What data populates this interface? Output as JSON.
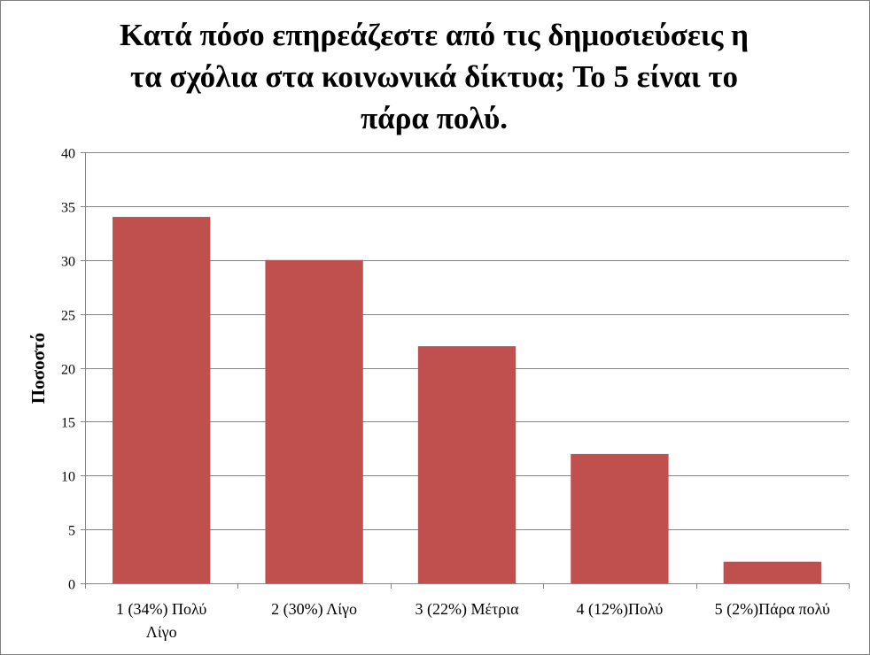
{
  "chart_data": {
    "type": "bar",
    "title": "Κατά πόσο επηρεάζεστε από τις δημοσιεύσεις η τα σχόλια στα κοινωνικά δίκτυα; Το 5 είναι το πάρα πολύ.",
    "title_lines": [
      "Κατά πόσο επηρεάζεστε από τις δημοσιεύσεις η",
      "τα σχόλια στα κοινωνικά δίκτυα; Το 5 είναι το",
      "πάρα πολύ."
    ],
    "ylabel": "Ποσοστό",
    "xlabel": "",
    "categories": [
      "1 (34%) Πολύ Λίγο",
      "2 (30%) Λίγο",
      "3 (22%) Μέτρια",
      "4 (12%)Πολύ",
      "5 (2%)Πάρα πολύ"
    ],
    "category_lines": [
      [
        "1 (34%) Πολύ",
        "Λίγο"
      ],
      [
        "2 (30%) Λίγο"
      ],
      [
        "3 (22%) Μέτρια"
      ],
      [
        "4 (12%)Πολύ"
      ],
      [
        "5 (2%)Πάρα πολύ"
      ]
    ],
    "values": [
      34,
      30,
      22,
      12,
      2
    ],
    "ylim": [
      0,
      40
    ],
    "yticks": [
      0,
      5,
      10,
      15,
      20,
      25,
      30,
      35,
      40
    ],
    "grid": true,
    "legend": "none",
    "bar_color": "#C0504D",
    "grid_color": "#868686"
  }
}
